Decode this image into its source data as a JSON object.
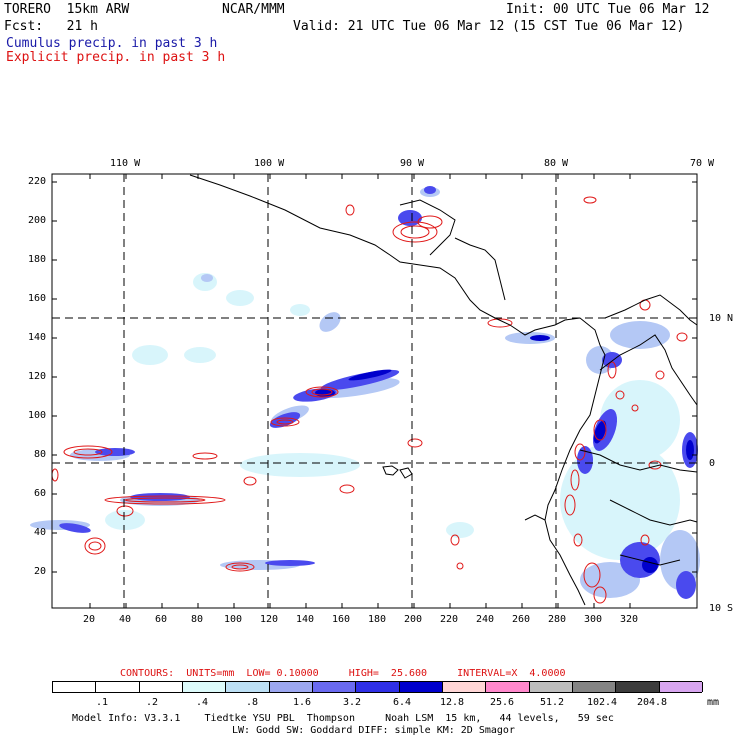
{
  "header": {
    "model": "TORERO  15km ARW",
    "org": "NCAR/MMM",
    "init": "Init: 00 UTC Tue 06 Mar 12",
    "fcst": "Fcst:   21 h",
    "valid": "Valid: 21 UTC Tue 06 Mar 12 (15 CST Tue 06 Mar 12)",
    "cumulus_label": "Cumulus precip. in past 3 h",
    "explicit_label": "Explicit precip. in past 3 h",
    "cumulus_color": "#1a1aa8",
    "explicit_color": "#dd1111"
  },
  "map": {
    "lon_labels": [
      "110 W",
      "100 W",
      "90 W",
      "80 W",
      "70 W"
    ],
    "lat_labels": [
      "10 N",
      "0",
      "10 S"
    ],
    "y_ticks": [
      "220",
      "200",
      "180",
      "160",
      "140",
      "120",
      "100",
      "80",
      "60",
      "40",
      "20"
    ],
    "x_ticks": [
      "20",
      "40",
      "60",
      "80",
      "100",
      "120",
      "140",
      "160",
      "180",
      "200",
      "220",
      "240",
      "260",
      "280",
      "300",
      "320"
    ]
  },
  "contours": {
    "text": "CONTOURS:  UNITS=mm  LOW= 0.10000     HIGH=  25.600     INTERVAL=X  4.0000"
  },
  "colorbar": {
    "colors": [
      "#ffffff",
      "#ffffff",
      "#ffffff",
      "#ddfbfb",
      "#bde0f5",
      "#9ca7f0",
      "#6a6af0",
      "#2f2fe6",
      "#0000cc",
      "#ffd6d6",
      "#ff88cc",
      "#bdbdbd",
      "#848484",
      "#3c3c3c",
      "#d8a6f0"
    ],
    "labels": [
      ".1",
      ".2",
      ".4",
      ".8",
      "1.6",
      "3.2",
      "6.4",
      "12.8",
      "25.6",
      "51.2",
      "102.4",
      "204.8"
    ],
    "unit": "mm"
  },
  "footer": {
    "line1": "Model Info: V3.3.1    Tiedtke YSU PBL  Thompson     Noah LSM  15 km,   44 levels,   59 sec",
    "line2": "LW: Godd SW: Goddard DIFF: simple KM: 2D Smagor"
  }
}
